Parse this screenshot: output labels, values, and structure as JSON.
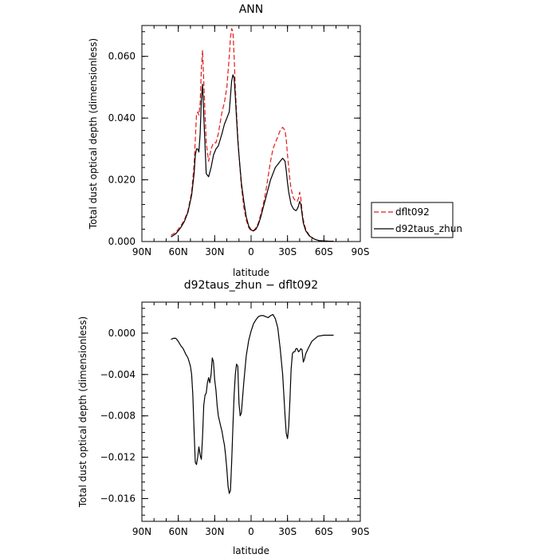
{
  "chart_data": [
    {
      "type": "line",
      "title": "ANN",
      "xlabel": "latitude",
      "ylabel": "Total dust optical depth (dimensionless)",
      "xlim": [
        90,
        -90
      ],
      "ylim": [
        0,
        0.07
      ],
      "x_ticks": [
        90,
        60,
        30,
        0,
        -30,
        -60,
        -90
      ],
      "x_tick_labels": [
        "90N",
        "60N",
        "30N",
        "0",
        "30S",
        "60S",
        "90S"
      ],
      "y_ticks": [
        0,
        0.02,
        0.04,
        0.06
      ],
      "y_tick_labels": [
        "0.000",
        "0.020",
        "0.040",
        "0.060"
      ],
      "grid": false,
      "legend": "right",
      "series": [
        {
          "name": "dflt092",
          "color": "#e41a1c",
          "style": "dashed",
          "x": [
            66,
            62,
            58,
            55,
            52,
            49,
            47,
            46,
            45,
            44,
            43,
            42,
            41,
            40,
            39,
            37,
            35,
            33,
            31,
            29,
            27,
            24,
            22,
            20,
            18,
            17,
            16,
            15,
            14,
            13,
            12,
            11,
            10,
            8,
            6,
            4,
            2,
            0,
            -2,
            -4,
            -6,
            -8,
            -10,
            -12,
            -14,
            -16,
            -18,
            -20,
            -22,
            -24,
            -26,
            -28,
            -29,
            -30,
            -31,
            -32,
            -33,
            -35,
            -37,
            -38,
            -39,
            -40,
            -41,
            -42,
            -43,
            -45,
            -48,
            -52,
            -56,
            -60,
            -64,
            -68
          ],
          "y": [
            0.002,
            0.003,
            0.005,
            0.007,
            0.01,
            0.016,
            0.025,
            0.033,
            0.041,
            0.042,
            0.041,
            0.045,
            0.056,
            0.062,
            0.052,
            0.032,
            0.026,
            0.03,
            0.032,
            0.032,
            0.035,
            0.042,
            0.045,
            0.05,
            0.06,
            0.066,
            0.069,
            0.068,
            0.06,
            0.05,
            0.042,
            0.034,
            0.028,
            0.018,
            0.011,
            0.007,
            0.0045,
            0.0035,
            0.0035,
            0.0045,
            0.006,
            0.009,
            0.012,
            0.016,
            0.021,
            0.026,
            0.03,
            0.032,
            0.034,
            0.036,
            0.037,
            0.036,
            0.033,
            0.028,
            0.024,
            0.02,
            0.017,
            0.014,
            0.013,
            0.013,
            0.014,
            0.016,
            0.014,
            0.01,
            0.007,
            0.004,
            0.002,
            0.0008,
            0.0003,
            0.0002,
            0.0001,
            0.0001
          ]
        },
        {
          "name": "d92taus_zhun",
          "color": "#000000",
          "style": "solid",
          "x": [
            66,
            62,
            58,
            55,
            52,
            49,
            47,
            46,
            45,
            44,
            43,
            42,
            41,
            40,
            39,
            37,
            35,
            33,
            31,
            29,
            27,
            24,
            22,
            20,
            18,
            17,
            16,
            15,
            14,
            13,
            12,
            11,
            10,
            8,
            6,
            4,
            2,
            0,
            -2,
            -4,
            -6,
            -8,
            -10,
            -12,
            -14,
            -16,
            -18,
            -20,
            -22,
            -24,
            -26,
            -28,
            -29,
            -30,
            -31,
            -32,
            -33,
            -35,
            -37,
            -38,
            -39,
            -40,
            -41,
            -42,
            -43,
            -45,
            -48,
            -52,
            -56,
            -60,
            -64,
            -68
          ],
          "y": [
            0.0015,
            0.0025,
            0.0045,
            0.0065,
            0.0095,
            0.015,
            0.022,
            0.028,
            0.03,
            0.03,
            0.029,
            0.035,
            0.046,
            0.051,
            0.041,
            0.022,
            0.021,
            0.024,
            0.028,
            0.03,
            0.031,
            0.035,
            0.038,
            0.04,
            0.042,
            0.047,
            0.052,
            0.054,
            0.053,
            0.047,
            0.04,
            0.033,
            0.028,
            0.019,
            0.013,
            0.008,
            0.005,
            0.0038,
            0.0034,
            0.004,
            0.0055,
            0.008,
            0.011,
            0.014,
            0.017,
            0.02,
            0.022,
            0.024,
            0.025,
            0.026,
            0.027,
            0.026,
            0.023,
            0.019,
            0.016,
            0.014,
            0.012,
            0.0105,
            0.01,
            0.0105,
            0.0115,
            0.013,
            0.012,
            0.009,
            0.006,
            0.0035,
            0.0018,
            0.0008,
            0.0003,
            0.0002,
            0.0001,
            0.0001
          ]
        }
      ]
    },
    {
      "type": "line",
      "title": "d92taus_zhun − dflt092",
      "xlabel": "latitude",
      "ylabel": "Total dust optical depth (dimensionless)",
      "xlim": [
        90,
        -90
      ],
      "ylim": [
        -0.0182,
        0.003
      ],
      "x_ticks": [
        90,
        60,
        30,
        0,
        -30,
        -60,
        -90
      ],
      "x_tick_labels": [
        "90N",
        "60N",
        "30N",
        "0",
        "30S",
        "60S",
        "90S"
      ],
      "y_ticks": [
        0.0,
        -0.004,
        -0.008,
        -0.012,
        -0.016
      ],
      "y_tick_labels": [
        "0.000",
        "−0.004",
        "−0.008",
        "−0.012",
        "−0.016"
      ],
      "grid": false,
      "series": [
        {
          "color": "#000000",
          "style": "solid",
          "x": [
            66,
            64,
            62,
            60,
            58,
            56,
            54,
            52,
            51,
            50,
            49,
            48,
            47,
            46,
            45,
            44,
            43,
            42,
            41,
            40,
            39,
            38,
            37,
            36,
            35,
            34,
            33,
            32,
            31,
            30,
            29,
            28,
            27,
            26,
            25,
            24,
            23,
            22,
            21,
            20,
            19,
            18,
            17,
            16,
            15,
            14,
            13,
            12,
            11,
            10,
            9,
            8,
            6,
            4,
            2,
            0,
            -2,
            -4,
            -6,
            -8,
            -10,
            -12,
            -14,
            -16,
            -18,
            -20,
            -22,
            -24,
            -26,
            -27,
            -28,
            -29,
            -30,
            -31,
            -32,
            -33,
            -34,
            -35,
            -36,
            -37,
            -38,
            -39,
            -40,
            -41,
            -42,
            -43,
            -44,
            -45,
            -47,
            -50,
            -55,
            -60,
            -65,
            -68
          ],
          "y": [
            -0.0006,
            -0.0005,
            -0.0005,
            -0.0008,
            -0.0012,
            -0.0015,
            -0.002,
            -0.0024,
            -0.0028,
            -0.0032,
            -0.004,
            -0.006,
            -0.0095,
            -0.0125,
            -0.0127,
            -0.012,
            -0.011,
            -0.0118,
            -0.0122,
            -0.01,
            -0.007,
            -0.006,
            -0.0058,
            -0.0048,
            -0.0043,
            -0.0048,
            -0.004,
            -0.0024,
            -0.0028,
            -0.0045,
            -0.0055,
            -0.007,
            -0.008,
            -0.0085,
            -0.009,
            -0.0095,
            -0.0102,
            -0.0108,
            -0.0118,
            -0.0132,
            -0.0148,
            -0.0155,
            -0.0152,
            -0.0125,
            -0.009,
            -0.006,
            -0.004,
            -0.003,
            -0.0032,
            -0.0068,
            -0.008,
            -0.0077,
            -0.0047,
            -0.0022,
            -0.0007,
            0.0002,
            0.0009,
            0.0013,
            0.0016,
            0.0017,
            0.0017,
            0.0016,
            0.0015,
            0.0017,
            0.0018,
            0.0014,
            0.0005,
            -0.0015,
            -0.004,
            -0.006,
            -0.008,
            -0.0097,
            -0.0102,
            -0.009,
            -0.0065,
            -0.0035,
            -0.002,
            -0.0018,
            -0.0018,
            -0.0015,
            -0.0015,
            -0.0018,
            -0.0017,
            -0.0015,
            -0.0016,
            -0.0028,
            -0.0025,
            -0.002,
            -0.0015,
            -0.0008,
            -0.0003,
            -0.0002,
            -0.0002,
            -0.0002
          ]
        }
      ]
    }
  ]
}
